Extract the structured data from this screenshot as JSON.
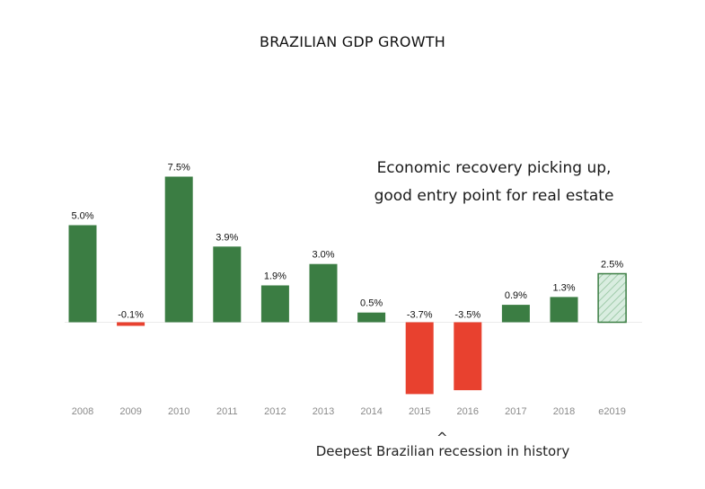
{
  "chart_data": {
    "type": "bar",
    "title": "BRAZILIAN GDP GROWTH",
    "categories": [
      "2008",
      "2009",
      "2010",
      "2011",
      "2012",
      "2013",
      "2014",
      "2015",
      "2016",
      "2017",
      "2018",
      "e2019"
    ],
    "values": [
      5.0,
      -0.1,
      7.5,
      3.9,
      1.9,
      3.0,
      0.5,
      -3.7,
      -3.5,
      0.9,
      1.3,
      2.5
    ],
    "data_labels": [
      "5.0%",
      "-0.1%",
      "7.5%",
      "3.9%",
      "1.9%",
      "3.0%",
      "0.5%",
      "-3.7%",
      "-3.5%",
      "0.9%",
      "1.3%",
      "2.5%"
    ],
    "estimated": [
      false,
      false,
      false,
      false,
      false,
      false,
      false,
      false,
      false,
      false,
      false,
      true
    ],
    "ylim": [
      -3.7,
      7.5
    ],
    "grid": false,
    "colors": {
      "positive": "#3b7d43",
      "negative": "#e8412f",
      "estimate_fill": "#cfe6d6",
      "estimate_stroke": "#3b7d43"
    },
    "annotations": {
      "recovery": [
        "Economic recovery picking up,",
        "good entry point for real estate"
      ],
      "recession_marker": "^",
      "recession": "Deepest Brazilian recession in history"
    }
  }
}
